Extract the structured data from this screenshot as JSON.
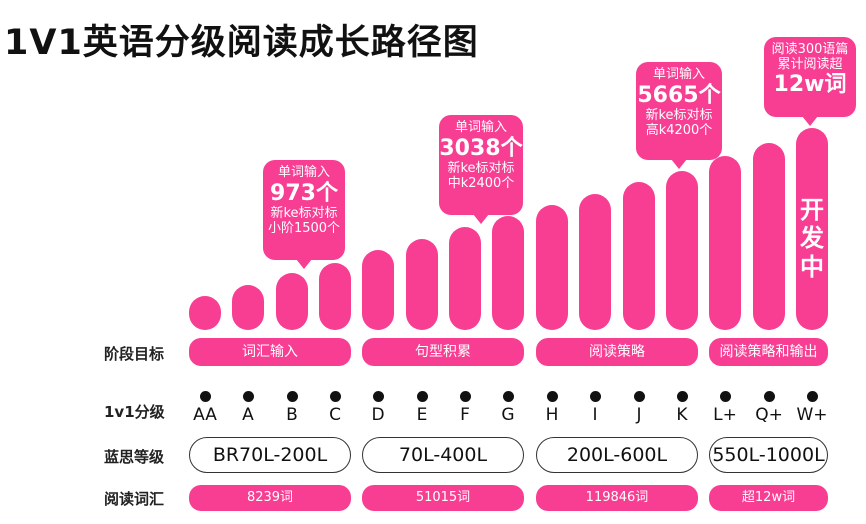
{
  "title": "1V1英语分级阅读成长路径图",
  "accent_color": "#f73e93",
  "row_labels": {
    "stage": "阶段目标",
    "level": "1v1分级",
    "lexile": "蓝思等级",
    "vocab": "阅读词汇"
  },
  "levels": [
    "AA",
    "A",
    "B",
    "C",
    "D",
    "E",
    "F",
    "G",
    "H",
    "I",
    "J",
    "K",
    "L+",
    "Q+",
    "W+"
  ],
  "stages": [
    "词汇输入",
    "句型积累",
    "阅读策略",
    "阅读策略和输出"
  ],
  "lexile_ranges": [
    "BR70L-200L",
    "70L-400L",
    "200L-600L",
    "550L-1000L"
  ],
  "vocab_counts": [
    "8239词",
    "51015词",
    "119846词",
    "超12w词"
  ],
  "callouts": [
    {
      "line1": "单词输入",
      "big": "973个",
      "line3": "新ke标对标",
      "line4": "小阶1500个"
    },
    {
      "line1": "单词输入",
      "big": "3038个",
      "line3": "新ke标对标",
      "line4": "中k2400个"
    },
    {
      "line1": "单词输入",
      "big": "5665个",
      "line3": "新ke标对标",
      "line4": "高k4200个"
    },
    {
      "line1": "阅读300语篇",
      "line2": "累计阅读超",
      "big": "12w词"
    }
  ],
  "in_development": [
    "开",
    "发",
    "中"
  ]
}
